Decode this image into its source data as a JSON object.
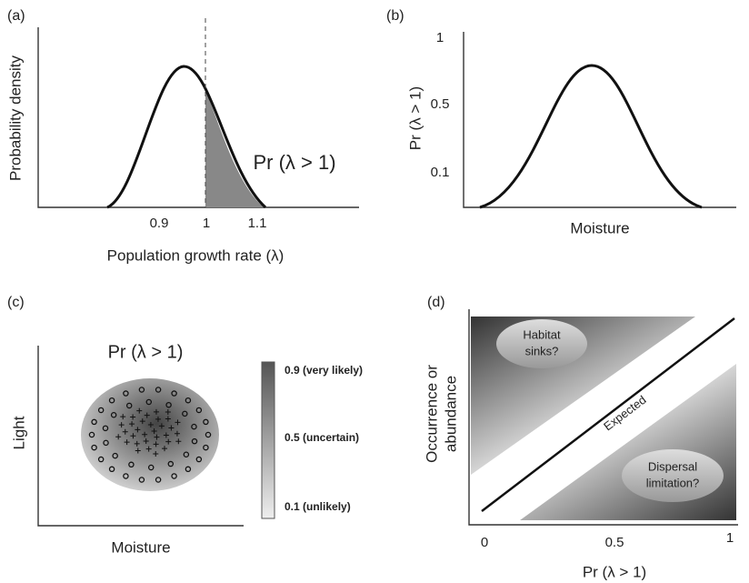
{
  "panels": [
    {
      "label": "(a)",
      "y_label": "Probability density",
      "x_label": "Population growth rate (λ)",
      "ticks": [
        "0.9",
        "1",
        "1.1"
      ],
      "annotation": "Pr (λ > 1)"
    },
    {
      "label": "(b)",
      "y_label": "Pr (λ > 1)",
      "x_label": "Moisture",
      "ticks": [
        "1",
        "0.5",
        "0.1"
      ]
    },
    {
      "label": "(c)",
      "y_label": "Light",
      "x_label": "Moisture",
      "title": "Pr (λ > 1)",
      "legend": [
        "0.9 (very likely)",
        "0.5 (uncertain)",
        "0.1 (unlikely)"
      ]
    },
    {
      "label": "(d)",
      "y_label": [
        "Occurrence or",
        "abundance"
      ],
      "x_label": "Pr (λ > 1)",
      "ticks": [
        "0",
        "0.5",
        "1"
      ],
      "annotations": {
        "sinks": [
          "Habitat",
          "sinks?"
        ],
        "expected": "Expected",
        "dispersal": [
          "Dispersal",
          "limitation?"
        ]
      }
    }
  ]
}
